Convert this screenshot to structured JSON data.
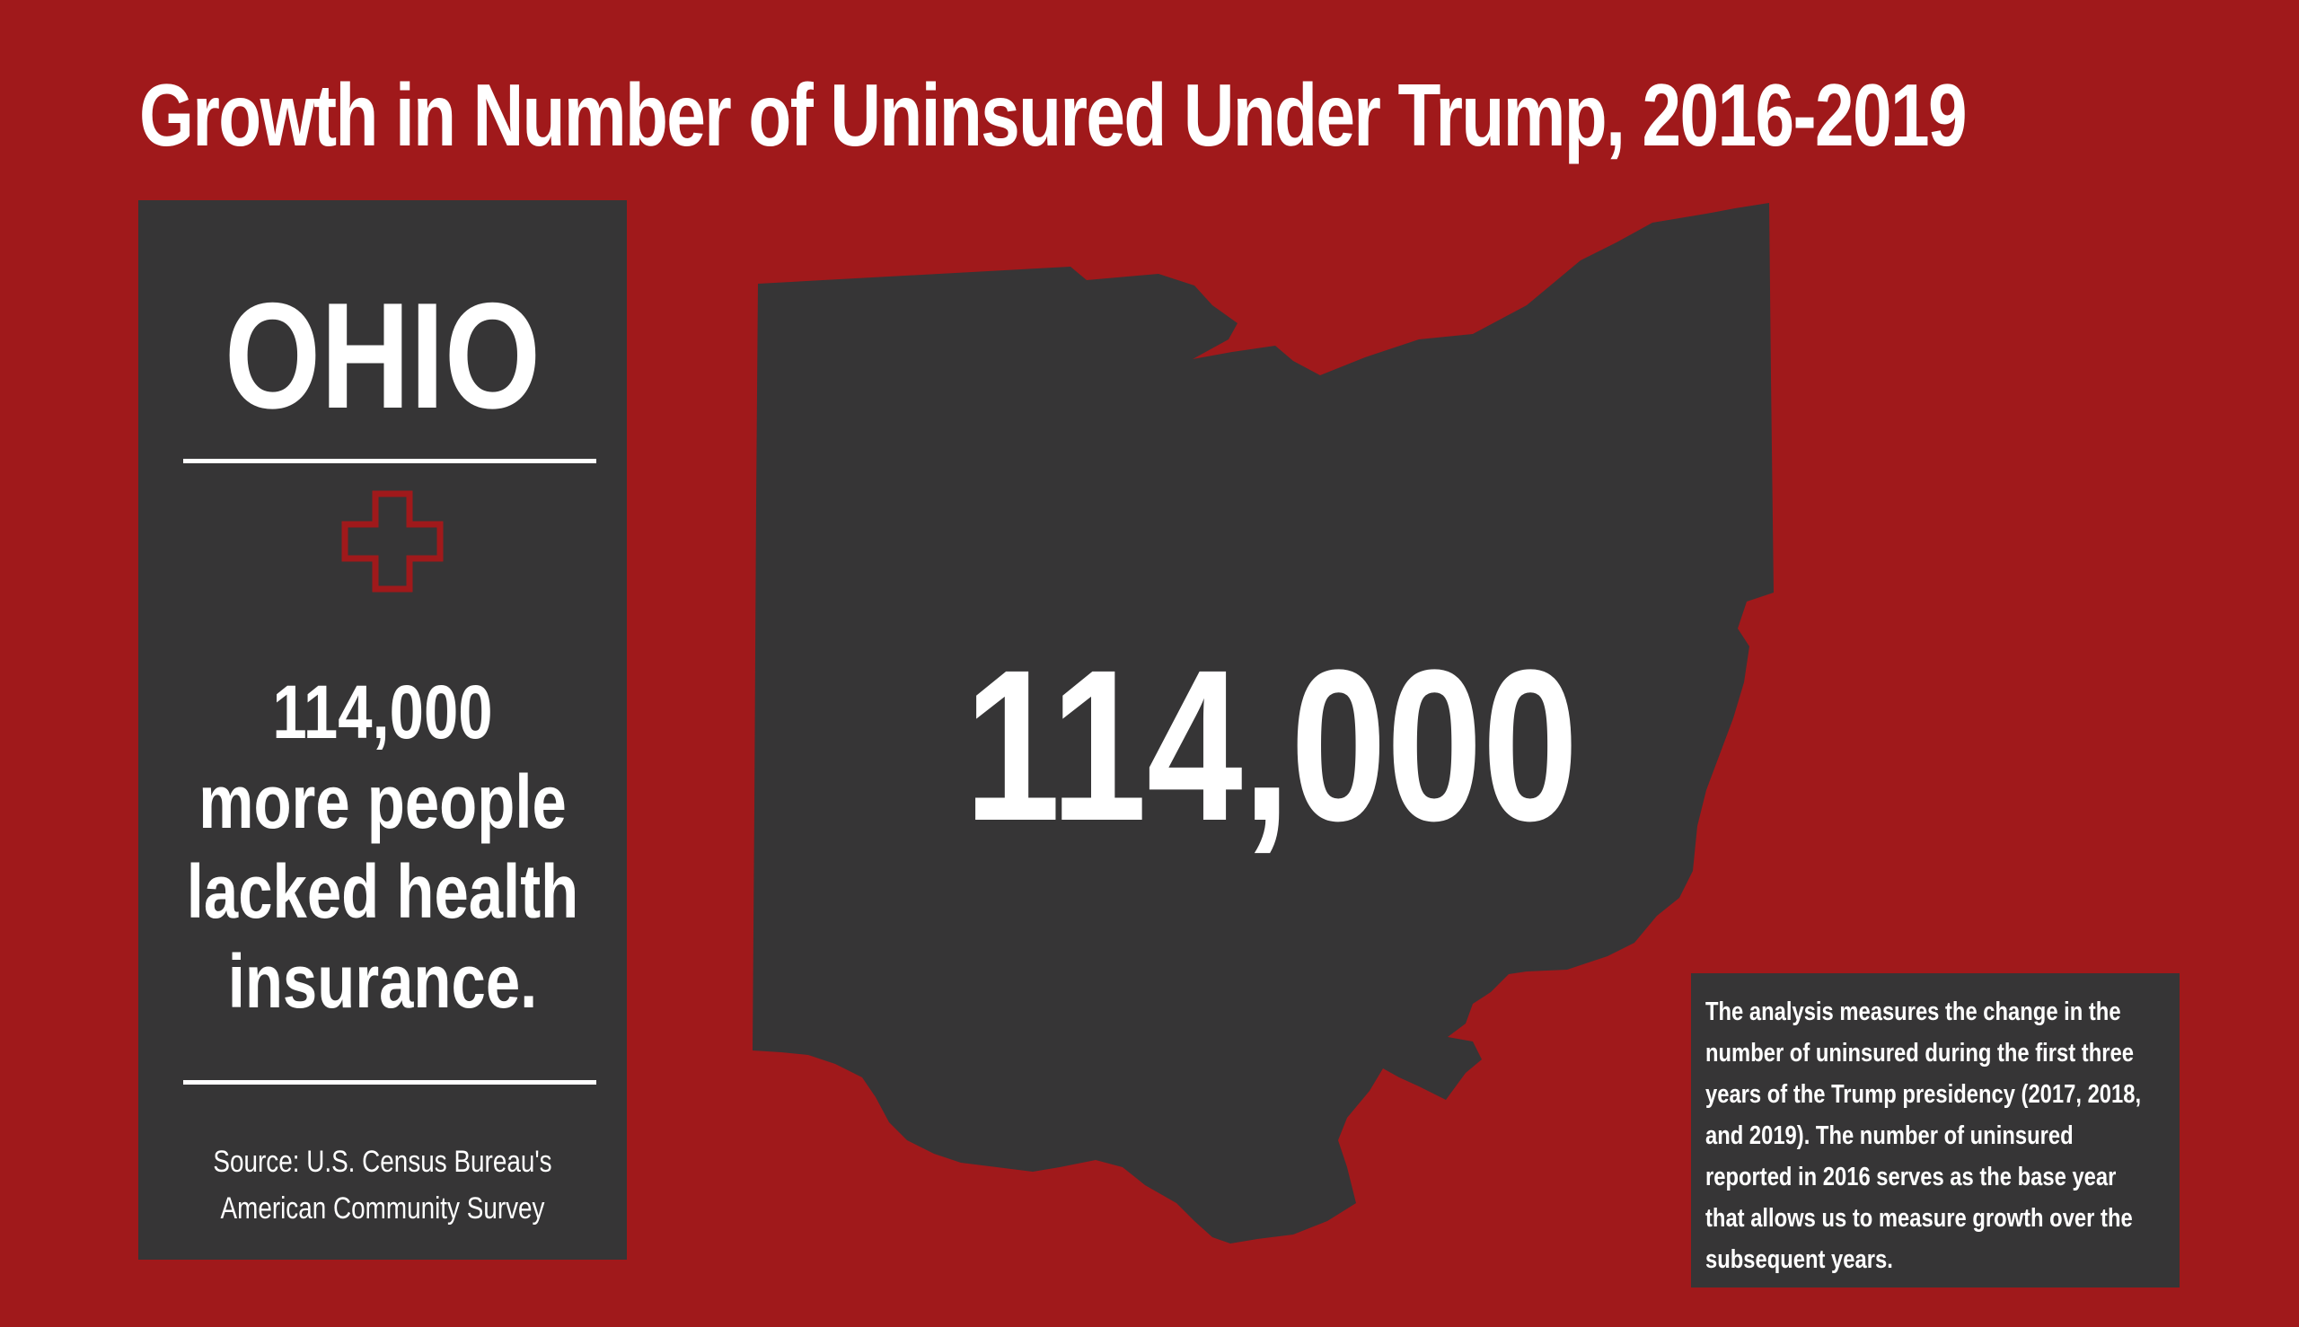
{
  "title": "Growth in Number of Uninsured Under Trump, 2016-2019",
  "left_panel": {
    "state": "OHIO",
    "stat_lines": [
      "114,000",
      "more people",
      "lacked health",
      "insurance."
    ],
    "source": "Source: U.S. Census Bureau's American Community Survey"
  },
  "map": {
    "big_number": "114,000"
  },
  "note": {
    "text": "The analysis measures the change in the number of uninsured during the  first three years of the Trump presidency (2017, 2018, and 2019). The number of uninsured reported in 2016 serves as the base year that allows us to measure growth over the subsequent years."
  },
  "colors": {
    "background": "#a0191b",
    "panel": "#363536",
    "text": "#ffffff",
    "accent": "#a0191b"
  },
  "icons": {
    "cross": "medical-cross-icon"
  }
}
